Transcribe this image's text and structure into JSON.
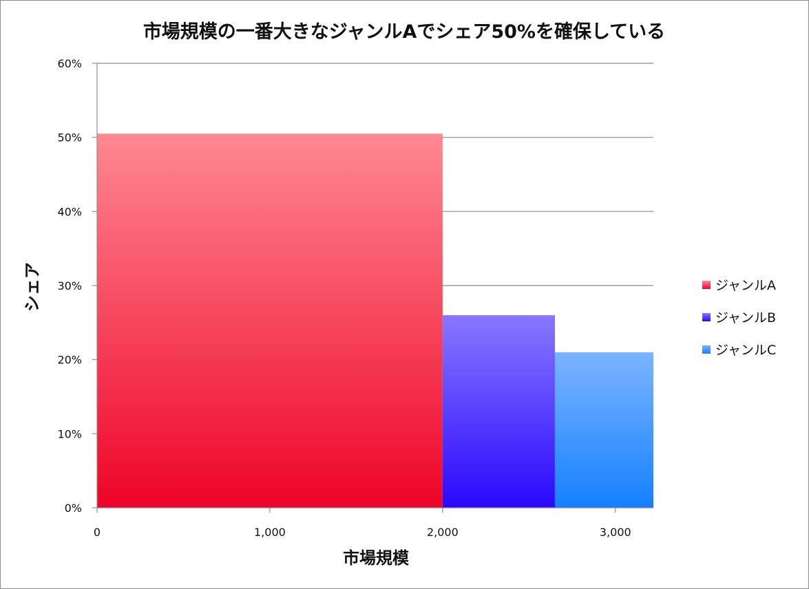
{
  "chart_data": {
    "type": "bar",
    "title": "市場規模の一番大きなジャンルAでシェア50%を確保している",
    "xlabel": "市場規模",
    "ylabel": "シェア",
    "xlim": [
      0,
      3220
    ],
    "ylim": [
      0,
      0.6
    ],
    "x_ticks": [
      {
        "value": 0,
        "label": "0"
      },
      {
        "value": 1000,
        "label": "1,000"
      },
      {
        "value": 2000,
        "label": "2,000"
      },
      {
        "value": 3000,
        "label": "3,000"
      }
    ],
    "y_ticks": [
      {
        "value": 0,
        "label": "0%"
      },
      {
        "value": 0.1,
        "label": "10%"
      },
      {
        "value": 0.2,
        "label": "20%"
      },
      {
        "value": 0.3,
        "label": "30%"
      },
      {
        "value": 0.4,
        "label": "40%"
      },
      {
        "value": 0.5,
        "label": "50%"
      },
      {
        "value": 0.6,
        "label": "60%"
      }
    ],
    "grid": "horizontal",
    "legend_position": "right",
    "series": [
      {
        "name": "ジャンルA",
        "x_start": 0,
        "x_end": 2000,
        "value": 0.505,
        "color_top": "#ff8891",
        "color_bottom": "#ee0428"
      },
      {
        "name": "ジャンルB",
        "x_start": 2000,
        "x_end": 2650,
        "value": 0.26,
        "color_top": "#8878ff",
        "color_bottom": "#2a08ff"
      },
      {
        "name": "ジャンルC",
        "x_start": 2650,
        "x_end": 3220,
        "value": 0.21,
        "color_top": "#7cb4ff",
        "color_bottom": "#1480ff"
      }
    ]
  }
}
